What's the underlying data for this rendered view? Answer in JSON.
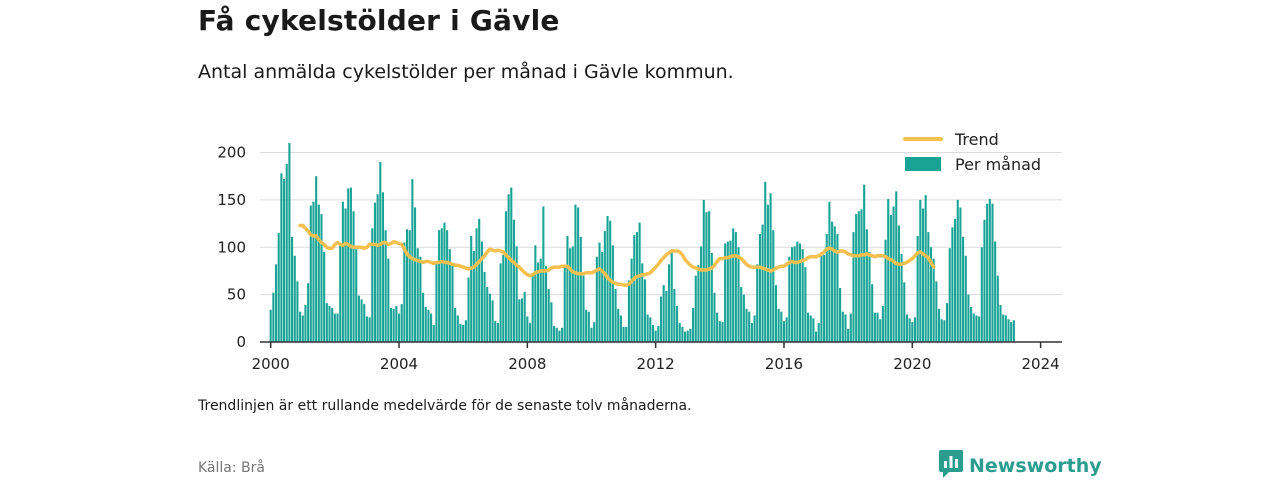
{
  "title": "Få cykelstölder i Gävle",
  "subtitle": "Antal anmälda cykelstölder per månad i Gävle kommun.",
  "footnote": "Trendlinjen är ett rullande medelvärde för de senaste tolv månaderna.",
  "source": "Källa: Brå",
  "brand": {
    "name": "Newsworthy",
    "icon": "newsworthy-logo-icon"
  },
  "colors": {
    "bars": "#17a396",
    "trend": "#f5c050",
    "grid": "#dcdcdc",
    "axis": "#333333"
  },
  "chart_data": {
    "type": "bar",
    "x_ticks": [
      "2000",
      "2004",
      "2008",
      "2012",
      "2016",
      "2020",
      "2024"
    ],
    "y_ticks": [
      "0",
      "50",
      "100",
      "150",
      "200"
    ],
    "ylim": [
      0,
      220
    ],
    "xlim": [
      "1999-09",
      "2024-09"
    ],
    "grid": true,
    "legend": {
      "position": "top-right",
      "entries": [
        "Trend",
        "Per månad"
      ]
    },
    "series": [
      {
        "name": "Per månad",
        "kind": "bar",
        "start": "2000-01",
        "values": [
          34,
          52,
          82,
          115,
          178,
          172,
          188,
          210,
          111,
          91,
          64,
          32,
          28,
          39,
          62,
          144,
          148,
          175,
          145,
          135,
          95,
          41,
          38,
          36,
          30,
          30,
          103,
          148,
          141,
          162,
          163,
          138,
          98,
          49,
          45,
          40,
          27,
          26,
          120,
          147,
          156,
          190,
          158,
          118,
          88,
          36,
          35,
          38,
          30,
          40,
          105,
          119,
          118,
          172,
          142,
          99,
          90,
          52,
          37,
          34,
          30,
          18,
          84,
          118,
          120,
          126,
          118,
          98,
          82,
          36,
          28,
          19,
          18,
          23,
          68,
          112,
          96,
          120,
          130,
          106,
          74,
          58,
          51,
          44,
          22,
          20,
          83,
          92,
          138,
          156,
          163,
          129,
          101,
          45,
          46,
          53,
          27,
          20,
          72,
          102,
          84,
          88,
          143,
          80,
          56,
          42,
          17,
          15,
          12,
          15,
          81,
          112,
          99,
          101,
          145,
          142,
          111,
          70,
          34,
          32,
          15,
          21,
          90,
          105,
          95,
          117,
          133,
          128,
          102,
          56,
          35,
          28,
          16,
          16,
          65,
          88,
          113,
          116,
          126,
          83,
          66,
          29,
          26,
          18,
          12,
          17,
          48,
          60,
          54,
          82,
          98,
          56,
          38,
          20,
          16,
          11,
          12,
          14,
          36,
          70,
          81,
          101,
          150,
          137,
          138,
          94,
          52,
          31,
          22,
          21,
          104,
          106,
          107,
          120,
          116,
          100,
          58,
          50,
          35,
          32,
          20,
          28,
          82,
          114,
          124,
          169,
          145,
          157,
          118,
          60,
          35,
          32,
          22,
          26,
          90,
          100,
          101,
          106,
          104,
          98,
          79,
          31,
          28,
          25,
          11,
          20,
          93,
          92,
          114,
          148,
          127,
          122,
          114,
          57,
          32,
          29,
          14,
          30,
          116,
          135,
          138,
          140,
          166,
          119,
          95,
          61,
          31,
          31,
          24,
          38,
          108,
          151,
          134,
          143,
          159,
          123,
          93,
          63,
          29,
          25,
          21,
          26,
          112,
          150,
          141,
          155,
          116,
          100,
          88,
          64,
          35,
          24,
          23,
          41,
          99,
          121,
          130,
          150,
          142,
          111,
          91,
          50,
          37,
          30,
          28,
          27,
          100,
          129,
          146,
          151,
          146,
          106,
          70,
          39,
          29,
          28,
          24,
          21,
          23
        ]
      },
      {
        "name": "Trend",
        "kind": "line",
        "start": "2000-12",
        "values": [
          123,
          123,
          120,
          117,
          113,
          112,
          112,
          108,
          105,
          103,
          100,
          99,
          99,
          103,
          105,
          103,
          102,
          104,
          103,
          101,
          100,
          100,
          100,
          100,
          99,
          100,
          103,
          103,
          103,
          102,
          103,
          105,
          105,
          103,
          104,
          106,
          105,
          104,
          103,
          98,
          93,
          90,
          88,
          87,
          86,
          85,
          84,
          85,
          85,
          84,
          83,
          84,
          84,
          85,
          84,
          84,
          83,
          82,
          81,
          81,
          80,
          79,
          78,
          77,
          78,
          79,
          82,
          85,
          88,
          91,
          95,
          98,
          97,
          96,
          97,
          96,
          95,
          92,
          89,
          86,
          84,
          81,
          79,
          76,
          73,
          71,
          70,
          71,
          73,
          74,
          75,
          75,
          75,
          76,
          78,
          79,
          79,
          79,
          80,
          80,
          80,
          77,
          74,
          73,
          72,
          72,
          72,
          73,
          73,
          73,
          74,
          76,
          77,
          75,
          72,
          68,
          65,
          63,
          62,
          61,
          61,
          60,
          60,
          61,
          64,
          67,
          69,
          70,
          71,
          71,
          72,
          73,
          76,
          79,
          82,
          86,
          89,
          92,
          94,
          96,
          96,
          96,
          95,
          92,
          87,
          84,
          81,
          79,
          78,
          77,
          76,
          76,
          76,
          77,
          78,
          81,
          85,
          88,
          88,
          89,
          89,
          90,
          91,
          91,
          90,
          88,
          85,
          82,
          80,
          79,
          79,
          79,
          79,
          78,
          77,
          76,
          75,
          76,
          78,
          79,
          80,
          80,
          82,
          84,
          85,
          84,
          84,
          85,
          86,
          87,
          89,
          90,
          90,
          90,
          91,
          93,
          95,
          98,
          99,
          98,
          96,
          95,
          96,
          96,
          95,
          93,
          92,
          91,
          91,
          91,
          92,
          92,
          93,
          92,
          91,
          90,
          91,
          91,
          91,
          90,
          88,
          87,
          85,
          83,
          82,
          82,
          83,
          84,
          86,
          88,
          91,
          94,
          95,
          93,
          91,
          89,
          84,
          79
        ]
      }
    ]
  }
}
